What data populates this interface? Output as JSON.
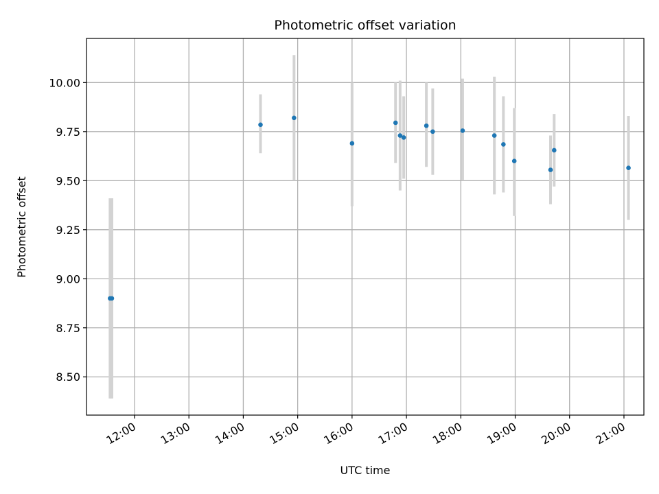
{
  "chart_data": {
    "type": "scatter",
    "title": "Photometric offset variation",
    "xlabel": "UTC time",
    "ylabel": "Photometric offset",
    "xlim": [
      "11:07",
      "21:22"
    ],
    "ylim": [
      8.305,
      10.225
    ],
    "x_ticks": [
      "12:00",
      "13:00",
      "14:00",
      "15:00",
      "16:00",
      "17:00",
      "18:00",
      "19:00",
      "20:00",
      "21:00"
    ],
    "y_ticks": [
      "8.50",
      "8.75",
      "9.00",
      "9.25",
      "9.50",
      "9.75",
      "10.00"
    ],
    "grid": true,
    "colors": {
      "points": "#1f77b4",
      "error_bars": "#d3d3d3",
      "grid": "#b0b0b0"
    },
    "series": [
      {
        "points": [
          {
            "x": "11:33",
            "y": 8.9,
            "err_low": 8.39,
            "err_high": 9.41
          },
          {
            "x": "11:35",
            "y": 8.9,
            "err_low": 8.39,
            "err_high": 9.41
          },
          {
            "x": "14:19",
            "y": 9.785,
            "err_low": 9.64,
            "err_high": 9.94
          },
          {
            "x": "14:56",
            "y": 9.82,
            "err_low": 9.5,
            "err_high": 10.14
          },
          {
            "x": "16:00",
            "y": 9.69,
            "err_low": 9.37,
            "err_high": 10.0
          },
          {
            "x": "16:48",
            "y": 9.795,
            "err_low": 9.59,
            "err_high": 10.0
          },
          {
            "x": "16:53",
            "y": 9.73,
            "err_low": 9.45,
            "err_high": 10.01
          },
          {
            "x": "16:57",
            "y": 9.72,
            "err_low": 9.51,
            "err_high": 9.93
          },
          {
            "x": "17:22",
            "y": 9.78,
            "err_low": 9.57,
            "err_high": 10.0
          },
          {
            "x": "17:29",
            "y": 9.75,
            "err_low": 9.53,
            "err_high": 9.97
          },
          {
            "x": "18:02",
            "y": 9.755,
            "err_low": 9.5,
            "err_high": 10.02
          },
          {
            "x": "18:37",
            "y": 9.73,
            "err_low": 9.43,
            "err_high": 10.03
          },
          {
            "x": "18:47",
            "y": 9.685,
            "err_low": 9.44,
            "err_high": 9.93
          },
          {
            "x": "18:59",
            "y": 9.6,
            "err_low": 9.32,
            "err_high": 9.87
          },
          {
            "x": "19:39",
            "y": 9.555,
            "err_low": 9.38,
            "err_high": 9.73
          },
          {
            "x": "19:43",
            "y": 9.655,
            "err_low": 9.47,
            "err_high": 9.84
          },
          {
            "x": "21:05",
            "y": 9.565,
            "err_low": 9.3,
            "err_high": 9.83
          }
        ]
      }
    ]
  }
}
